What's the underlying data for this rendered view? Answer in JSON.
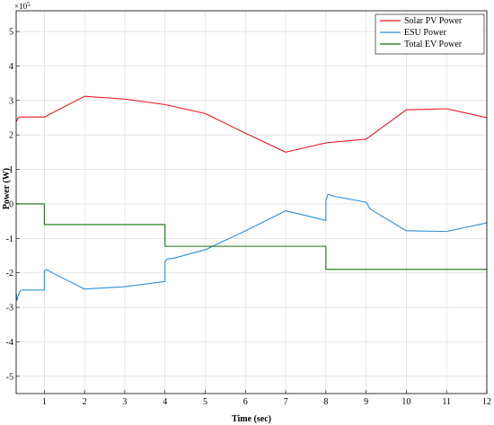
{
  "chart_data": {
    "type": "line",
    "title": "",
    "xlabel": "Time (sec)",
    "ylabel": "Power (W)",
    "y_exponent_label": "×10",
    "y_exponent_power": "5",
    "xlim": [
      0.3,
      12
    ],
    "ylim": [
      -5.5,
      5.6
    ],
    "xticks": [
      1,
      2,
      3,
      4,
      5,
      6,
      7,
      8,
      9,
      10,
      11,
      12
    ],
    "yticks": [
      -5,
      -4,
      -3,
      -2,
      -1,
      0,
      1,
      2,
      3,
      4,
      5
    ],
    "grid": true,
    "legend_position": "top-right",
    "series": [
      {
        "name": "Solar PV Power",
        "color": "#e8141c",
        "x": [
          0.3,
          0.35,
          0.4,
          1.0,
          2.0,
          3.0,
          4.0,
          5.0,
          6.0,
          7.0,
          8.0,
          9.0,
          10.0,
          11.0,
          12.0
        ],
        "y": [
          2.38,
          2.5,
          2.52,
          2.52,
          3.12,
          3.04,
          2.88,
          2.62,
          2.05,
          1.5,
          1.77,
          1.88,
          2.73,
          2.76,
          2.5
        ]
      },
      {
        "name": "ESU Power",
        "color": "#2a8fd8",
        "x": [
          0.3,
          0.32,
          0.35,
          0.4,
          0.45,
          1.0,
          1.0,
          1.05,
          1.2,
          2.0,
          3.0,
          4.0,
          4.0,
          4.05,
          4.2,
          5.0,
          6.0,
          7.0,
          7.3,
          8.0,
          8.0,
          8.05,
          8.2,
          9.0,
          9.1,
          10.0,
          11.0,
          12.0
        ],
        "y": [
          -2.6,
          -2.8,
          -2.65,
          -2.52,
          -2.5,
          -2.5,
          -1.95,
          -1.9,
          -2.0,
          -2.47,
          -2.4,
          -2.25,
          -1.68,
          -1.6,
          -1.58,
          -1.33,
          -0.78,
          -0.2,
          -0.28,
          -0.48,
          0.1,
          0.28,
          0.22,
          0.05,
          -0.15,
          -0.78,
          -0.8,
          -0.55
        ]
      },
      {
        "name": "Total EV Power",
        "color": "#1b6e12",
        "x": [
          0.3,
          1.0,
          1.0,
          4.0,
          4.0,
          8.0,
          8.0,
          12.0
        ],
        "y": [
          0.0,
          0.0,
          -0.6,
          -0.6,
          -1.23,
          -1.23,
          -1.9,
          -1.9
        ]
      }
    ]
  }
}
